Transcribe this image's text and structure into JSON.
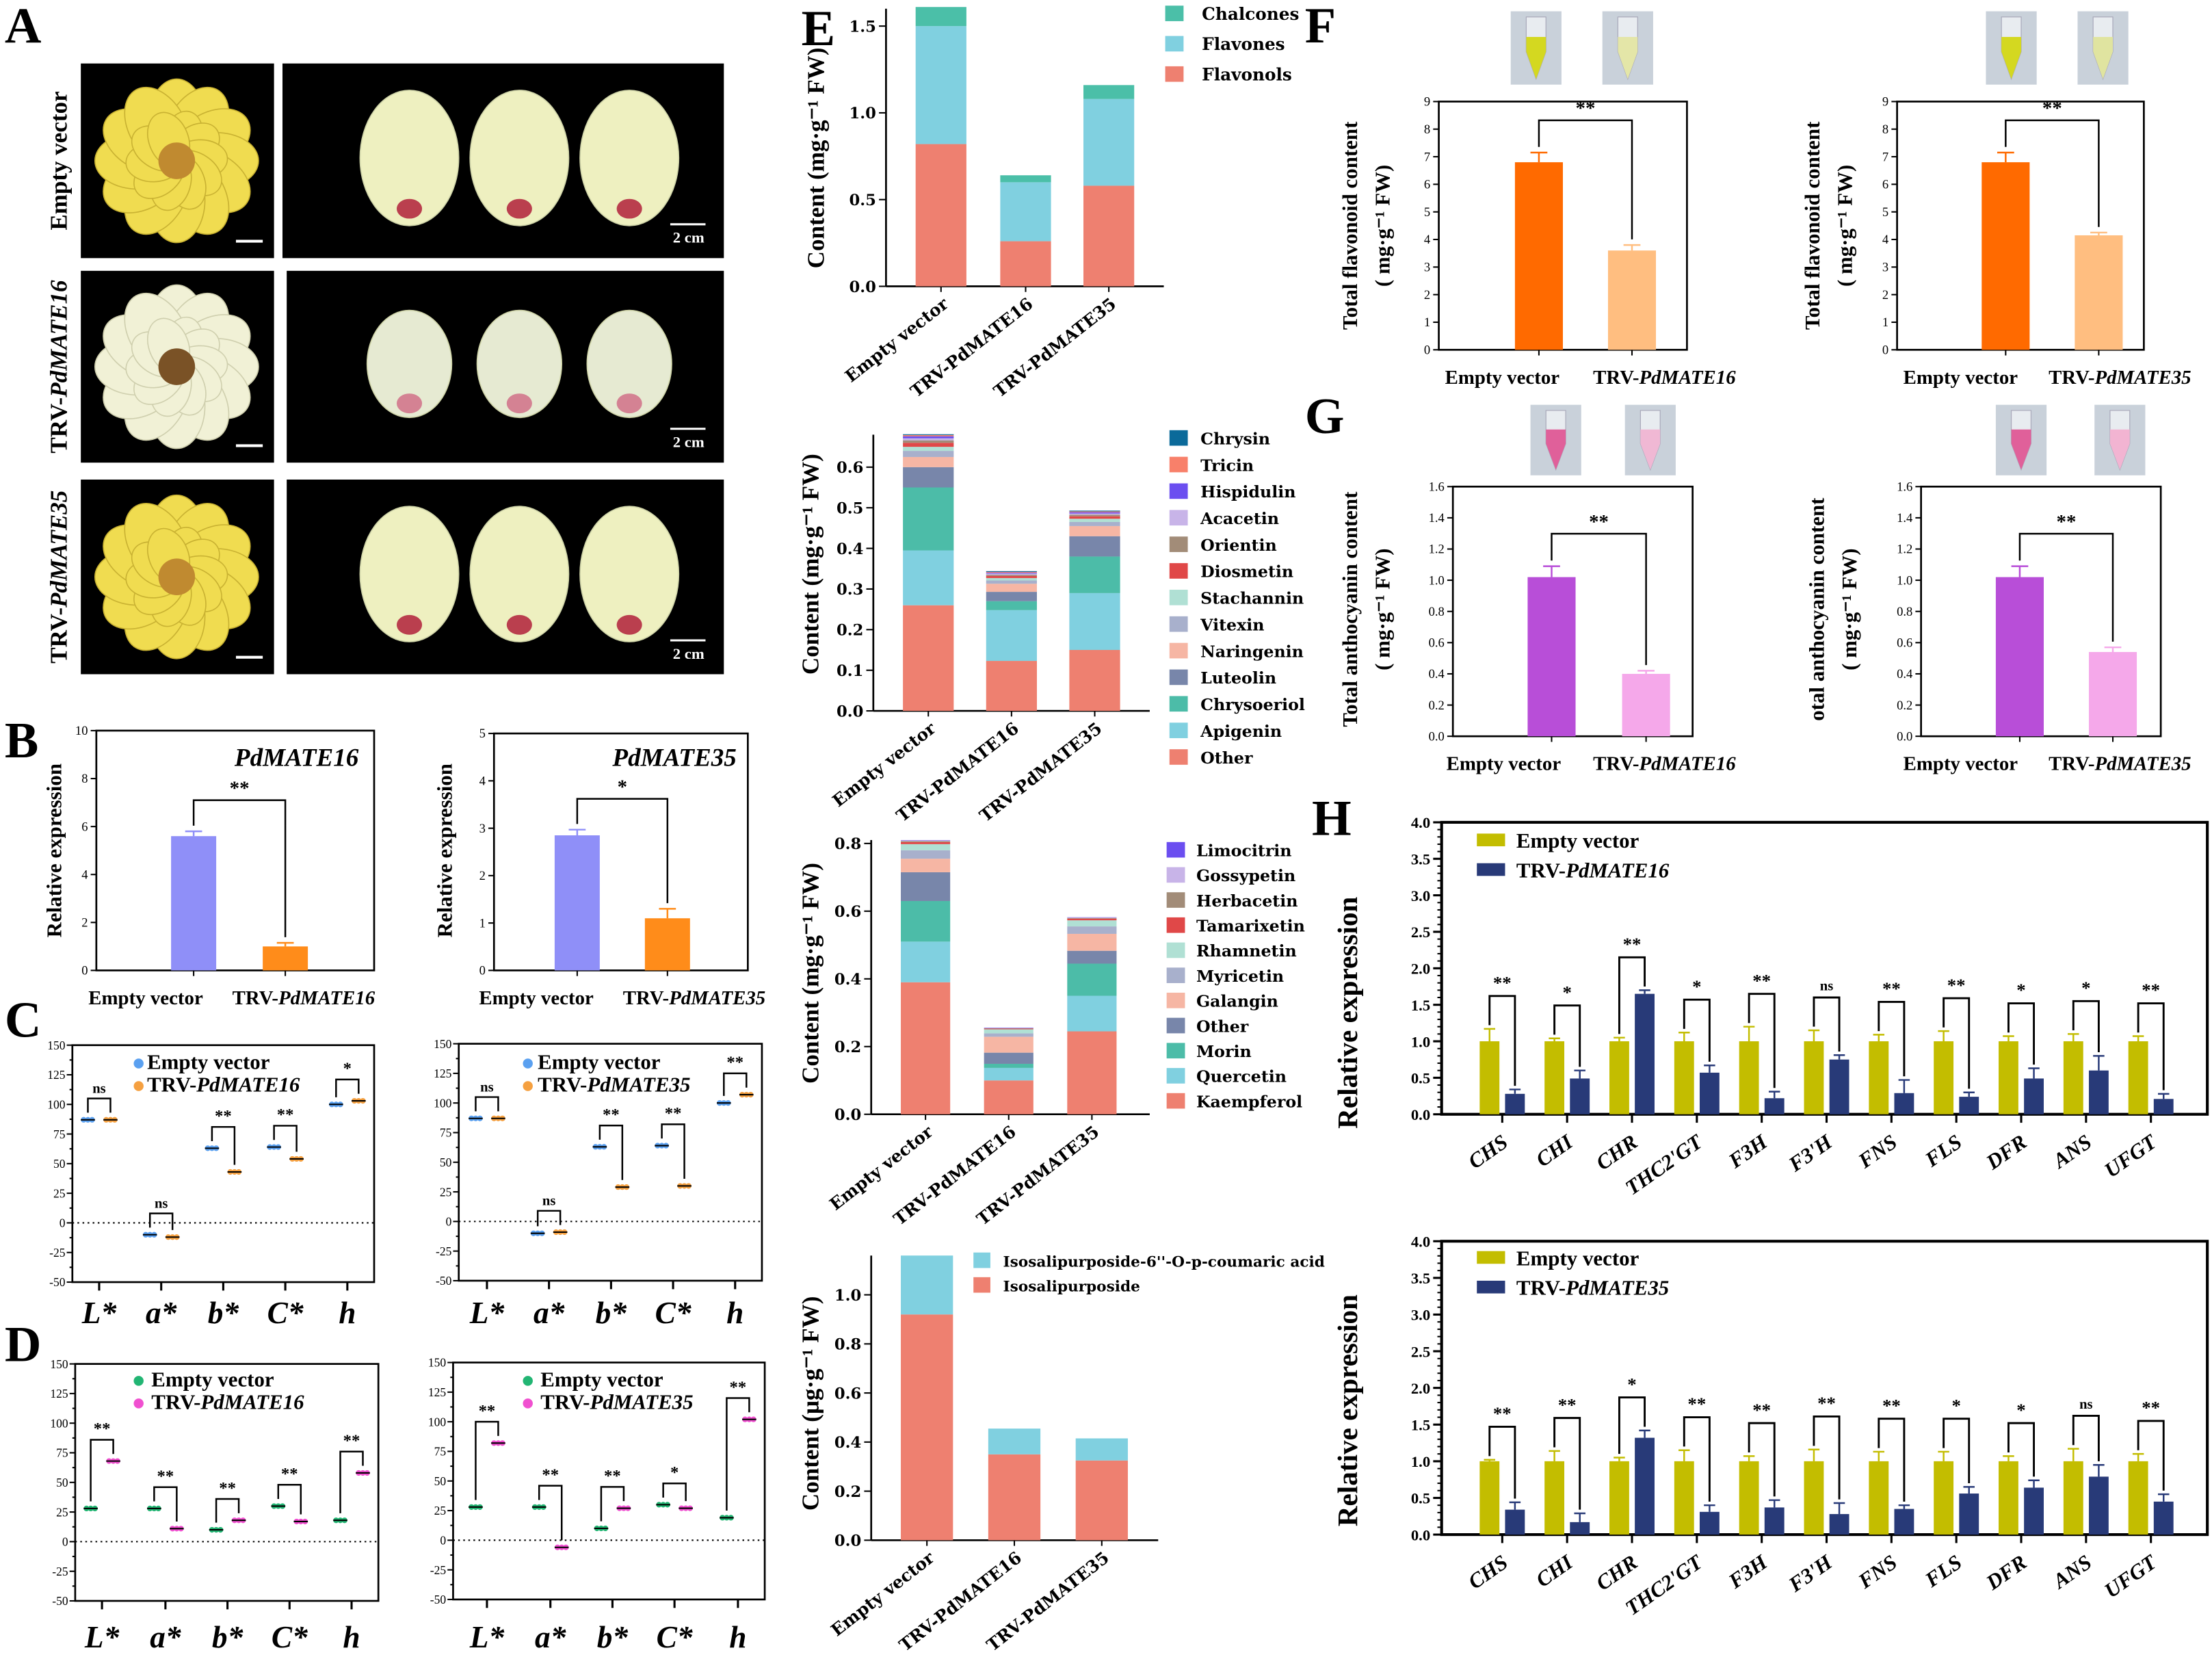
{
  "panel_labels": [
    "A",
    "B",
    "C",
    "D",
    "E",
    "F",
    "G",
    "H"
  ],
  "panel_a": {
    "row_labels": [
      "Empty vector",
      "TRV-PdMATE16",
      "TRV-PdMATE35"
    ],
    "scale_bar_label": "2 cm",
    "colors": {
      "background": "#000000",
      "yellow_flower": "#f0dc50",
      "cream_flower": "#f1f1d6",
      "petal": "#eef0c0",
      "pigment_spot": "#b0203a"
    }
  },
  "chart_data": [
    {
      "type": "bar",
      "title": "PdMATE16",
      "ylabel": [
        "Relative expression"
      ],
      "categories": [
        "Empty vector",
        "TRV-PdMATE16"
      ],
      "values": [
        5.6,
        1.0
      ],
      "errors": [
        0.2,
        0.15
      ],
      "ylim": [
        0,
        10
      ],
      "yticks": [
        "0",
        "2",
        "4",
        "6",
        "8",
        "10"
      ],
      "significance": "**",
      "colors": [
        "#8f8ff8",
        "#ff8c1a"
      ]
    },
    {
      "type": "bar",
      "title": "PdMATE35",
      "ylabel": [
        "Relative expression"
      ],
      "categories": [
        "Empty vector",
        "TRV-PdMATE35"
      ],
      "values": [
        2.85,
        1.1
      ],
      "errors": [
        0.12,
        0.2
      ],
      "ylim": [
        0,
        5
      ],
      "yticks": [
        "0",
        "1",
        "2",
        "3",
        "4",
        "5"
      ],
      "significance": "*",
      "colors": [
        "#8f8ff8",
        "#ff8c1a"
      ]
    },
    {
      "type": "scatter",
      "categories": [
        "L*",
        "a*",
        "b*",
        "C*",
        "h"
      ],
      "ylim": [
        -50,
        150
      ],
      "yticks": [
        "-50",
        "-25",
        "0",
        "25",
        "50",
        "75",
        "100",
        "125",
        "150"
      ],
      "series": [
        {
          "name": "Empty vector",
          "values": [
            87,
            -10,
            63,
            64,
            100
          ],
          "color": "#5aa0f0"
        },
        {
          "name": "TRV-PdMATE16",
          "values": [
            87,
            -12,
            43,
            54,
            103
          ],
          "color": "#f5a040"
        }
      ],
      "significance": [
        "ns",
        "ns",
        "**",
        "**",
        "*"
      ]
    },
    {
      "type": "scatter",
      "categories": [
        "L*",
        "a*",
        "b*",
        "C*",
        "h"
      ],
      "ylim": [
        -50,
        150
      ],
      "yticks": [
        "-50",
        "-25",
        "0",
        "25",
        "50",
        "75",
        "100",
        "125",
        "150"
      ],
      "series": [
        {
          "name": "Empty vector",
          "values": [
            87,
            -10,
            63,
            64,
            100
          ],
          "color": "#5aa0f0"
        },
        {
          "name": "TRV-PdMATE35",
          "values": [
            87,
            -9,
            29,
            30,
            107
          ],
          "color": "#f5a040"
        }
      ],
      "significance": [
        "ns",
        "ns",
        "**",
        "**",
        "**"
      ]
    },
    {
      "type": "scatter",
      "categories": [
        "L*",
        "a*",
        "b*",
        "C*",
        "h"
      ],
      "ylim": [
        -50,
        150
      ],
      "yticks": [
        "-50",
        "-25",
        "0",
        "25",
        "50",
        "75",
        "100",
        "125",
        "150"
      ],
      "series": [
        {
          "name": "Empty vector",
          "values": [
            28,
            28,
            10,
            30,
            18
          ],
          "color": "#22b573"
        },
        {
          "name": "TRV-PdMATE16",
          "values": [
            68,
            11,
            18,
            17,
            58
          ],
          "color": "#f050d0"
        }
      ],
      "significance": [
        "**",
        "**",
        "**",
        "**",
        "**"
      ]
    },
    {
      "type": "scatter",
      "categories": [
        "L*",
        "a*",
        "b*",
        "C*",
        "h"
      ],
      "ylim": [
        -50,
        150
      ],
      "yticks": [
        "-50",
        "-25",
        "0",
        "25",
        "50",
        "75",
        "100",
        "125",
        "150"
      ],
      "series": [
        {
          "name": "Empty vector",
          "values": [
            28,
            28,
            10,
            30,
            19
          ],
          "color": "#22b573"
        },
        {
          "name": "TRV-PdMATE35",
          "values": [
            82,
            -6,
            27,
            27,
            102
          ],
          "color": "#f050d0"
        }
      ],
      "significance": [
        "**",
        "**",
        "**",
        "*",
        "**"
      ]
    },
    {
      "type": "bar",
      "stacked": true,
      "ylabel": "Content (mg·g⁻¹ FW)",
      "categories": [
        "Empty vector",
        "TRV-PdMATE16",
        "TRV-PdMATE35"
      ],
      "ylim": [
        0,
        1.6
      ],
      "yticks": [
        "0.0",
        "0.5",
        "1.0",
        "1.5"
      ],
      "series": [
        {
          "name": "Flavonols",
          "values": [
            0.82,
            0.26,
            0.58
          ],
          "color": "#ee8070"
        },
        {
          "name": "Flavones",
          "values": [
            0.68,
            0.34,
            0.5
          ],
          "color": "#80d0e0"
        },
        {
          "name": "Chalcones",
          "values": [
            0.11,
            0.04,
            0.08
          ],
          "color": "#4bbfa8"
        }
      ]
    },
    {
      "type": "bar",
      "stacked": true,
      "ylabel": "Content (mg·g⁻¹ FW)",
      "categories": [
        "Empty vector",
        "TRV-PdMATE16",
        "TRV-PdMATE35"
      ],
      "ylim": [
        0,
        0.68
      ],
      "yticks": [
        "0.0",
        "0.1",
        "0.2",
        "0.3",
        "0.4",
        "0.5",
        "0.6"
      ],
      "series": [
        {
          "name": "Other",
          "values": [
            0.26,
            0.123,
            0.15
          ],
          "color": "#ee8070"
        },
        {
          "name": "Apigenin",
          "values": [
            0.135,
            0.125,
            0.14
          ],
          "color": "#80d0e0"
        },
        {
          "name": "Chrysoeriol",
          "values": [
            0.155,
            0.022,
            0.09
          ],
          "color": "#4cbca8"
        },
        {
          "name": "Luteolin",
          "values": [
            0.05,
            0.023,
            0.05
          ],
          "color": "#7886aa"
        },
        {
          "name": "Naringenin",
          "values": [
            0.025,
            0.02,
            0.025
          ],
          "color": "#f6b6a4"
        },
        {
          "name": "Vitexin",
          "values": [
            0.015,
            0.008,
            0.01
          ],
          "color": "#a8b0cc"
        },
        {
          "name": "Stachannin",
          "values": [
            0.01,
            0.006,
            0.008
          ],
          "color": "#b0e0d4"
        },
        {
          "name": "Diosmetin",
          "values": [
            0.01,
            0.005,
            0.006
          ],
          "color": "#e04848"
        },
        {
          "name": "Orientin",
          "values": [
            0.006,
            0.003,
            0.004
          ],
          "color": "#a28c78"
        },
        {
          "name": "Acacetin",
          "values": [
            0.005,
            0.003,
            0.003
          ],
          "color": "#c8b4e8"
        },
        {
          "name": "Hispidulin",
          "values": [
            0.005,
            0.002,
            0.003
          ],
          "color": "#6b4ef0"
        },
        {
          "name": "Tricin",
          "values": [
            0.003,
            0.002,
            0.002
          ],
          "color": "#f8806a"
        },
        {
          "name": "Chrysin",
          "values": [
            0.002,
            0.002,
            0.002
          ],
          "color": "#0b6a9a"
        }
      ]
    },
    {
      "type": "bar",
      "stacked": true,
      "ylabel": "Content (mg·g⁻¹ FW)",
      "categories": [
        "Empty vector",
        "TRV-PdMATE16",
        "TRV-PdMATE35"
      ],
      "ylim": [
        0,
        0.81
      ],
      "yticks": [
        "0.0",
        "0.2",
        "0.4",
        "0.6",
        "0.8"
      ],
      "series": [
        {
          "name": "Kaempferol",
          "values": [
            0.39,
            0.1,
            0.245
          ],
          "color": "#ee8070"
        },
        {
          "name": "Quercetin",
          "values": [
            0.12,
            0.037,
            0.105
          ],
          "color": "#80d0e0"
        },
        {
          "name": "Morin",
          "values": [
            0.12,
            0.012,
            0.095
          ],
          "color": "#4cbca8"
        },
        {
          "name": "Other",
          "values": [
            0.085,
            0.033,
            0.038
          ],
          "color": "#7886aa"
        },
        {
          "name": "Galangin",
          "values": [
            0.04,
            0.047,
            0.05
          ],
          "color": "#f6b6a4"
        },
        {
          "name": "Myricetin",
          "values": [
            0.025,
            0.01,
            0.022
          ],
          "color": "#a8b0cc"
        },
        {
          "name": "Rhamnetin",
          "values": [
            0.018,
            0.012,
            0.018
          ],
          "color": "#b0e0d4"
        },
        {
          "name": "Tamarixetin",
          "values": [
            0.006,
            0.002,
            0.005
          ],
          "color": "#e04848"
        },
        {
          "name": "Herbacetin",
          "values": [
            0.003,
            0.001,
            0.002
          ],
          "color": "#a28c78"
        },
        {
          "name": "Gossypetin",
          "values": [
            0.002,
            0.001,
            0.001
          ],
          "color": "#c8b4e8"
        },
        {
          "name": "Limocitrin",
          "values": [
            0.001,
            0.001,
            0.001
          ],
          "color": "#6b4ef0"
        }
      ]
    },
    {
      "type": "bar",
      "stacked": true,
      "ylabel": "Content (μg·g⁻¹ FW)",
      "categories": [
        "Empty vector",
        "TRV-PdMATE16",
        "TRV-PdMATE35"
      ],
      "ylim": [
        0,
        1.16
      ],
      "yticks": [
        "0.0",
        "0.2",
        "0.4",
        "0.6",
        "0.8",
        "1.0"
      ],
      "series": [
        {
          "name": "Isosalipurposide",
          "values": [
            0.92,
            0.35,
            0.325
          ],
          "color": "#ee8070"
        },
        {
          "name": "Isosalipurposide-6''-O-p-coumaric acid",
          "values": [
            0.24,
            0.105,
            0.09
          ],
          "color": "#80d0e0"
        }
      ]
    },
    {
      "type": "bar",
      "ylabel": [
        "Total flavonoid content",
        "( mg·g⁻¹ FW)"
      ],
      "categories": [
        "Empty vector",
        "TRV-PdMATE16"
      ],
      "values": [
        6.8,
        3.6
      ],
      "errors": [
        0.35,
        0.2
      ],
      "ylim": [
        0,
        9
      ],
      "yticks": [
        "0",
        "1",
        "2",
        "3",
        "4",
        "5",
        "6",
        "7",
        "8",
        "9"
      ],
      "significance": "**",
      "colors": [
        "#ff6a00",
        "#ffbe80"
      ],
      "tube_colors": [
        "#d4d820",
        "#e4e6a8"
      ]
    },
    {
      "type": "bar",
      "ylabel": [
        "Total flavonoid content",
        "( mg·g⁻¹ FW)"
      ],
      "categories": [
        "Empty vector",
        "TRV-PdMATE35"
      ],
      "values": [
        6.8,
        4.15
      ],
      "errors": [
        0.35,
        0.1
      ],
      "ylim": [
        0,
        9
      ],
      "yticks": [
        "0",
        "1",
        "2",
        "3",
        "4",
        "5",
        "6",
        "7",
        "8",
        "9"
      ],
      "significance": "**",
      "colors": [
        "#ff6a00",
        "#ffbe80"
      ],
      "tube_colors": [
        "#d4d820",
        "#e0e4a0"
      ]
    },
    {
      "type": "bar",
      "ylabel": [
        "Total anthocyanin content",
        "( mg·g⁻¹ FW)"
      ],
      "categories": [
        "Empty vector",
        "TRV-PdMATE16"
      ],
      "values": [
        1.02,
        0.4
      ],
      "errors": [
        0.07,
        0.02
      ],
      "ylim": [
        0,
        1.6
      ],
      "yticks": [
        "0.0",
        "0.2",
        "0.4",
        "0.6",
        "0.8",
        "1.0",
        "1.2",
        "1.4",
        "1.6"
      ],
      "significance": "**",
      "colors": [
        "#b84ed8",
        "#f5a8ea"
      ],
      "tube_colors": [
        "#e0609a",
        "#f0b8d4"
      ]
    },
    {
      "type": "bar",
      "ylabel": [
        "otal anthocyanin content",
        "( mg·g⁻¹ FW)"
      ],
      "categories": [
        "Empty vector",
        "TRV-PdMATE35"
      ],
      "values": [
        1.02,
        0.54
      ],
      "errors": [
        0.07,
        0.03
      ],
      "ylim": [
        0,
        1.6
      ],
      "yticks": [
        "0.0",
        "0.2",
        "0.4",
        "0.6",
        "0.8",
        "1.0",
        "1.2",
        "1.4",
        "1.6"
      ],
      "significance": "**",
      "colors": [
        "#b84ed8",
        "#f5a8ea"
      ],
      "tube_colors": [
        "#e0609a",
        "#f2b4d2"
      ]
    },
    {
      "type": "bar",
      "grouped": true,
      "ylabel": "Relative expression",
      "categories": [
        "CHS",
        "CHI",
        "CHR",
        "THC2'GT",
        "F3H",
        "F3'H",
        "FNS",
        "FLS",
        "DFR",
        "ANS",
        "UFGT"
      ],
      "ylim": [
        0,
        4
      ],
      "yticks": [
        "0.0",
        "0.5",
        "1.0",
        "1.5",
        "2.0",
        "2.5",
        "3.0",
        "3.5",
        "4.0"
      ],
      "series": [
        {
          "name": "Empty vector",
          "values": [
            1,
            1,
            1,
            1,
            1,
            1,
            1,
            1,
            1,
            1,
            1
          ],
          "errors": [
            0.17,
            0.04,
            0.05,
            0.12,
            0.2,
            0.15,
            0.09,
            0.14,
            0.07,
            0.1,
            0.07
          ],
          "color": "#c3bd00"
        },
        {
          "name": "TRV-PdMATE16",
          "values": [
            0.28,
            0.49,
            1.65,
            0.57,
            0.22,
            0.75,
            0.29,
            0.24,
            0.49,
            0.6,
            0.21
          ],
          "errors": [
            0.06,
            0.11,
            0.05,
            0.1,
            0.09,
            0.06,
            0.18,
            0.06,
            0.14,
            0.2,
            0.07
          ],
          "color": "#283a78"
        }
      ],
      "significance": [
        "**",
        "*",
        "**",
        "*",
        "**",
        "ns",
        "**",
        "**",
        "*",
        "*",
        "**"
      ]
    },
    {
      "type": "bar",
      "grouped": true,
      "ylabel": "Relative expression",
      "categories": [
        "CHS",
        "CHI",
        "CHR",
        "THC2'GT",
        "F3H",
        "F3'H",
        "FNS",
        "FLS",
        "DFR",
        "ANS",
        "UFGT"
      ],
      "ylim": [
        0,
        4
      ],
      "yticks": [
        "0.0",
        "0.5",
        "1.0",
        "1.5",
        "2.0",
        "2.5",
        "3.0",
        "3.5",
        "4.0"
      ],
      "series": [
        {
          "name": "Empty vector",
          "values": [
            1,
            1,
            1,
            1,
            1,
            1,
            1,
            1,
            1,
            1,
            1
          ],
          "errors": [
            0.02,
            0.14,
            0.05,
            0.15,
            0.07,
            0.16,
            0.13,
            0.13,
            0.07,
            0.17,
            0.1
          ],
          "color": "#c3bd00"
        },
        {
          "name": "TRV-PdMATE35",
          "values": [
            0.34,
            0.17,
            1.32,
            0.31,
            0.37,
            0.28,
            0.35,
            0.56,
            0.64,
            0.79,
            0.45
          ],
          "errors": [
            0.1,
            0.12,
            0.1,
            0.09,
            0.1,
            0.15,
            0.05,
            0.09,
            0.1,
            0.16,
            0.1
          ],
          "color": "#283a78"
        }
      ],
      "significance": [
        "**",
        "**",
        "*",
        "**",
        "**",
        "**",
        "**",
        "*",
        "*",
        "ns",
        "**"
      ]
    }
  ]
}
